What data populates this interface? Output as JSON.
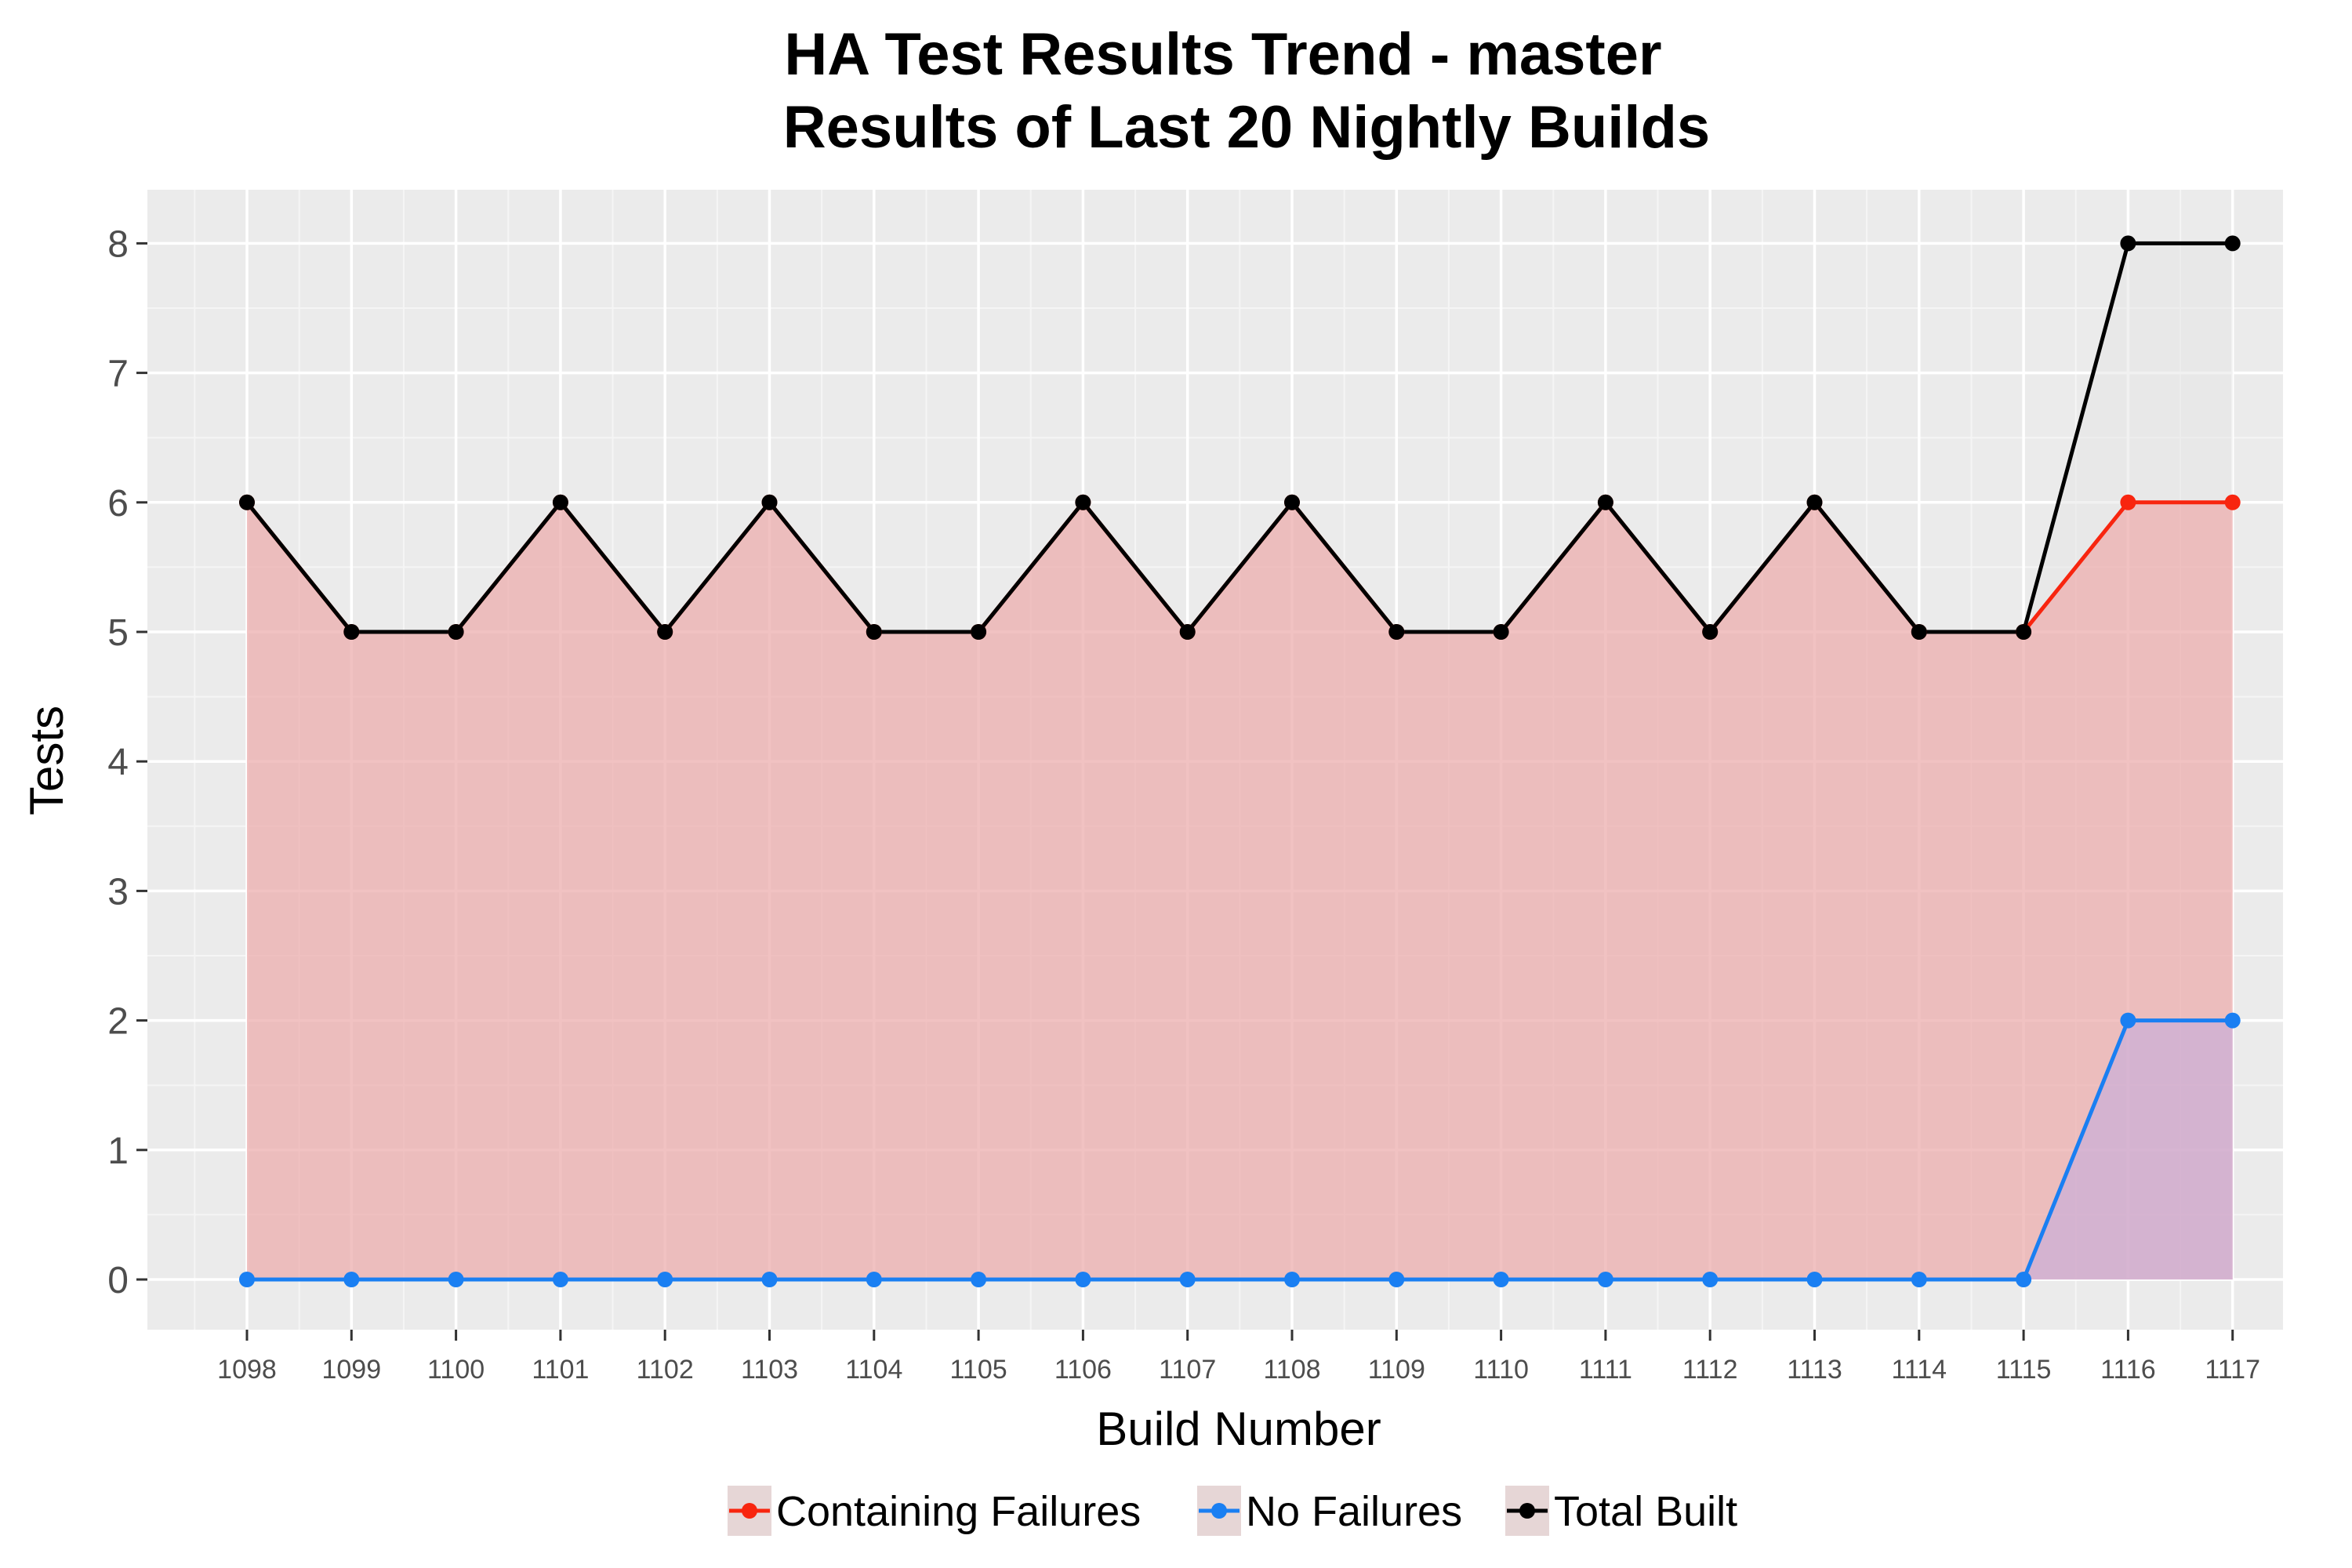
{
  "chart_data": {
    "type": "line",
    "title_line1": "HA Test Results Trend - master",
    "title_line2": "Results of Last 20 Nightly Builds",
    "xlabel": "Build Number",
    "ylabel": "Tests",
    "categories": [
      "1098",
      "1099",
      "1100",
      "1101",
      "1102",
      "1103",
      "1104",
      "1105",
      "1106",
      "1107",
      "1108",
      "1109",
      "1110",
      "1111",
      "1112",
      "1113",
      "1114",
      "1115",
      "1116",
      "1117"
    ],
    "y_ticks": [
      "0",
      "1",
      "2",
      "3",
      "4",
      "5",
      "6",
      "7",
      "8"
    ],
    "ylim": [
      -0.4,
      8.4
    ],
    "grid": true,
    "legend_position": "bottom",
    "series": [
      {
        "name": "Containing Failures",
        "color": "#f8250f",
        "fill": "#f28a8a",
        "values": [
          6,
          5,
          5,
          6,
          5,
          6,
          5,
          5,
          6,
          5,
          6,
          5,
          5,
          6,
          5,
          6,
          5,
          5,
          6,
          6
        ]
      },
      {
        "name": "No Failures",
        "color": "#1a7ff2",
        "fill": "#b7a6e6",
        "values": [
          0,
          0,
          0,
          0,
          0,
          0,
          0,
          0,
          0,
          0,
          0,
          0,
          0,
          0,
          0,
          0,
          0,
          0,
          2,
          2
        ]
      },
      {
        "name": "Total Built",
        "color": "#000000",
        "fill": "#e6e6e6",
        "values": [
          6,
          5,
          5,
          6,
          5,
          6,
          5,
          5,
          6,
          5,
          6,
          5,
          5,
          6,
          5,
          6,
          5,
          5,
          8,
          8
        ]
      }
    ]
  }
}
